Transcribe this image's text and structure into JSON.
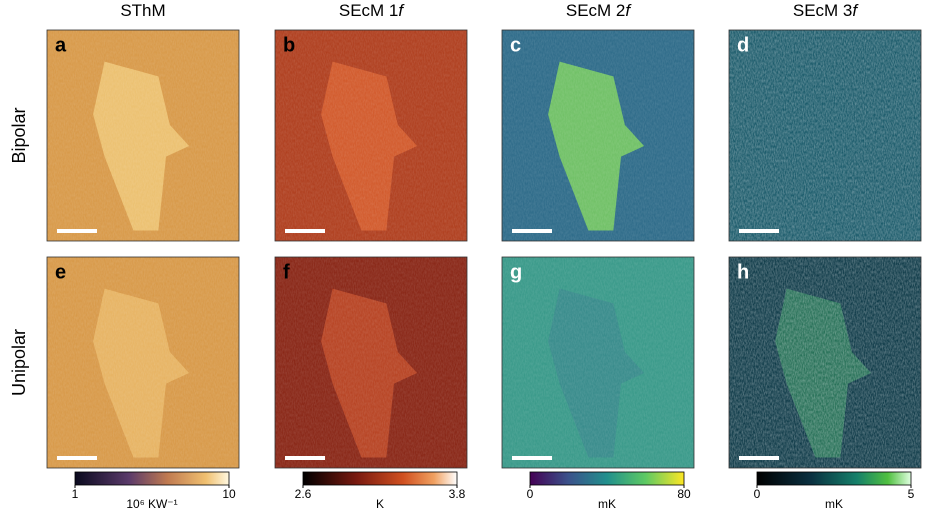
{
  "columns": [
    {
      "text": "SThM"
    },
    {
      "text": "SEcM 1",
      "italic": "f"
    },
    {
      "text": "SEcM 2",
      "italic": "f"
    },
    {
      "text": "SEcM 3",
      "italic": "f"
    }
  ],
  "rows": [
    {
      "label": "Bipolar",
      "panels": [
        "a",
        "b",
        "c",
        "d"
      ]
    },
    {
      "label": "Unipolar",
      "panels": [
        "e",
        "f",
        "g",
        "h"
      ]
    }
  ],
  "colorbars": [
    {
      "ticks": [
        1,
        10
      ],
      "unit": "10⁶ KW⁻¹"
    },
    {
      "ticks": [
        2.6,
        3.8
      ],
      "unit": "K"
    },
    {
      "ticks": [
        0,
        80
      ],
      "unit": "mK"
    },
    {
      "ticks": [
        0,
        5
      ],
      "unit": "mK"
    }
  ]
}
